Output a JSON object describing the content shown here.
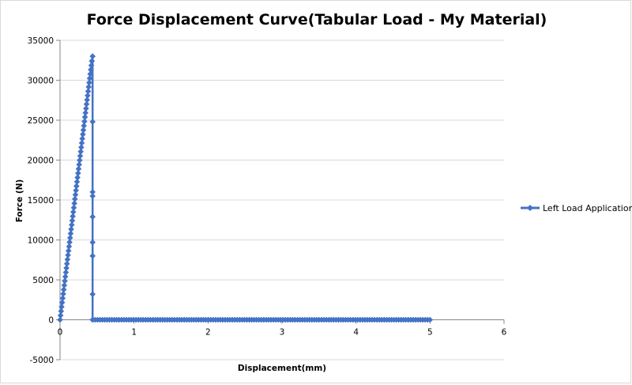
{
  "chart_data": {
    "type": "scatter",
    "title": "Force Displacement Curve(Tabular Load - My Material)",
    "xlabel": "Displacement(mm)",
    "ylabel": "Force (N)",
    "xlim": [
      0,
      6
    ],
    "ylim": [
      -5000,
      35000
    ],
    "x_ticks": [
      "0",
      "1",
      "2",
      "3",
      "4",
      "5",
      "6"
    ],
    "y_ticks": [
      "-5000",
      "0",
      "5000",
      "10000",
      "15000",
      "20000",
      "25000",
      "30000",
      "35000"
    ],
    "grid": "horizontal",
    "legend_position": "right",
    "series_color": "#4472C4",
    "series": [
      {
        "name": "Left Load Application",
        "marker": "diamond",
        "ramp_samples": 60,
        "plateau_samples": 140,
        "points": [
          [
            0,
            0
          ],
          [
            0.43,
            32400
          ],
          [
            0.44,
            33000
          ],
          [
            0.44,
            24800
          ],
          [
            0.44,
            16000
          ],
          [
            0.44,
            15500
          ],
          [
            0.44,
            12900
          ],
          [
            0.44,
            9700
          ],
          [
            0.44,
            8000
          ],
          [
            0.44,
            3200
          ],
          [
            0.44,
            0
          ],
          [
            5,
            0
          ]
        ]
      }
    ]
  }
}
